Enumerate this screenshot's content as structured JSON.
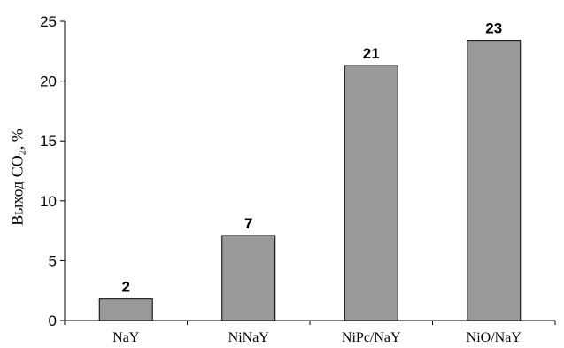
{
  "chart_data": {
    "type": "bar",
    "categories": [
      "NaY",
      "NiNaY",
      "NiPc/NaY",
      "NiO/NaY"
    ],
    "values": [
      1.8,
      7.1,
      21.3,
      23.4
    ],
    "data_labels": [
      "2",
      "7",
      "21",
      "23"
    ],
    "ylabel": {
      "prefix": "Выход CO",
      "subscript": "2",
      "suffix": ", %"
    },
    "ylim": [
      0,
      25
    ],
    "yticks": [
      0,
      5,
      10,
      15,
      20,
      25
    ],
    "grid": false,
    "bar_color": "#999999"
  }
}
